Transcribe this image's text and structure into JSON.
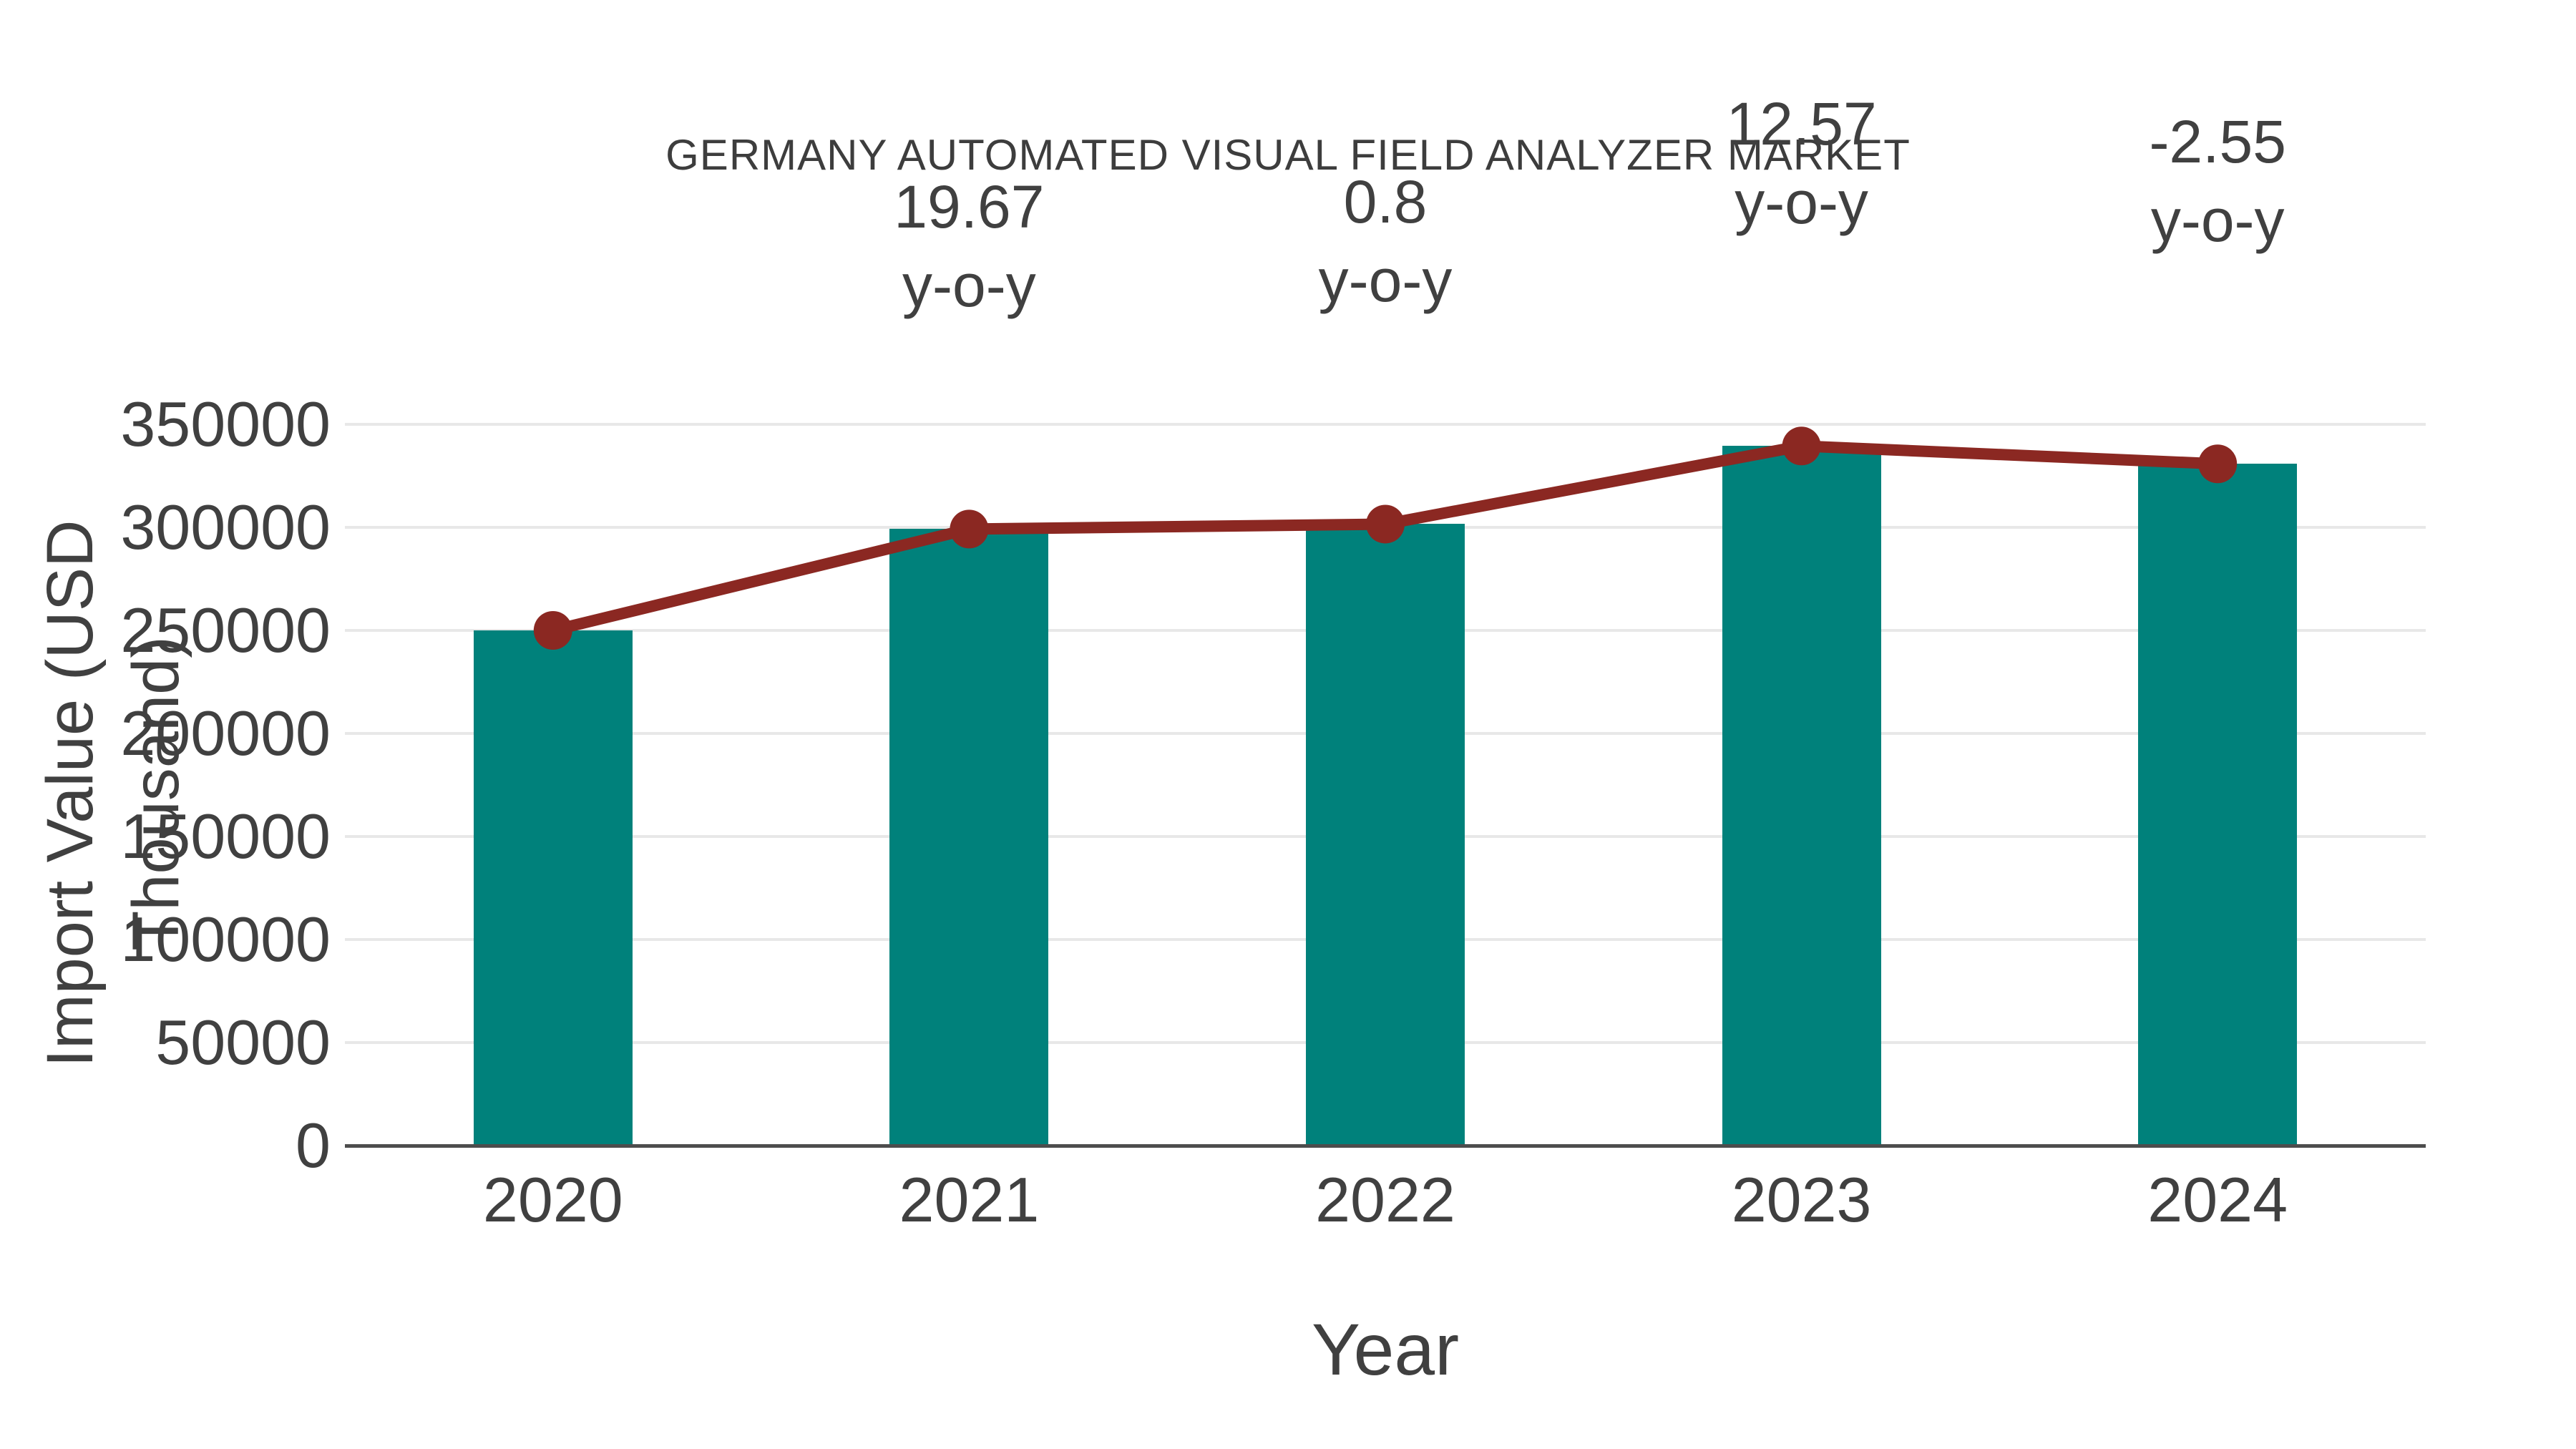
{
  "chart": {
    "title": "GERMANY AUTOMATED VISUAL FIELD ANALYZER MARKET",
    "xlabel": "Year",
    "ylabel": "Import Value (USD Thousand)"
  },
  "chart_data": {
    "type": "bar",
    "title": "GERMANY AUTOMATED VISUAL FIELD ANALYZER MARKET",
    "xlabel": "Year",
    "ylabel": "Import Value (USD Thousand)",
    "categories": [
      "2020",
      "2021",
      "2022",
      "2023",
      "2024"
    ],
    "series": [
      {
        "name": "import-value-bars",
        "type": "bar",
        "color": "#00817b",
        "values": [
          250000,
          299175,
          301568,
          339475,
          330818
        ]
      },
      {
        "name": "import-value-trend-line",
        "type": "line",
        "color": "#8b2822",
        "values": [
          250000,
          299175,
          301568,
          339475,
          330818
        ]
      }
    ],
    "annotations": [
      {
        "category": "2021",
        "line1": "19.67",
        "line2": "y-o-y"
      },
      {
        "category": "2022",
        "line1": "0.8",
        "line2": "y-o-y"
      },
      {
        "category": "2023",
        "line1": "12.57",
        "line2": "y-o-y"
      },
      {
        "category": "2024",
        "line1": "-2.55",
        "line2": "y-o-y"
      }
    ],
    "yticks": [
      0,
      50000,
      100000,
      150000,
      200000,
      250000,
      300000,
      350000
    ],
    "ylim": [
      0,
      350000
    ],
    "grid": "horizontal",
    "legend_position": "none"
  },
  "colors": {
    "background": "#ffffff",
    "bar": "#00817b",
    "line": "#8b2822",
    "text": "#404040",
    "title_text": "#3d3d3d",
    "gridline": "#e8e8e8",
    "axis_line": "#4d4d4d"
  }
}
